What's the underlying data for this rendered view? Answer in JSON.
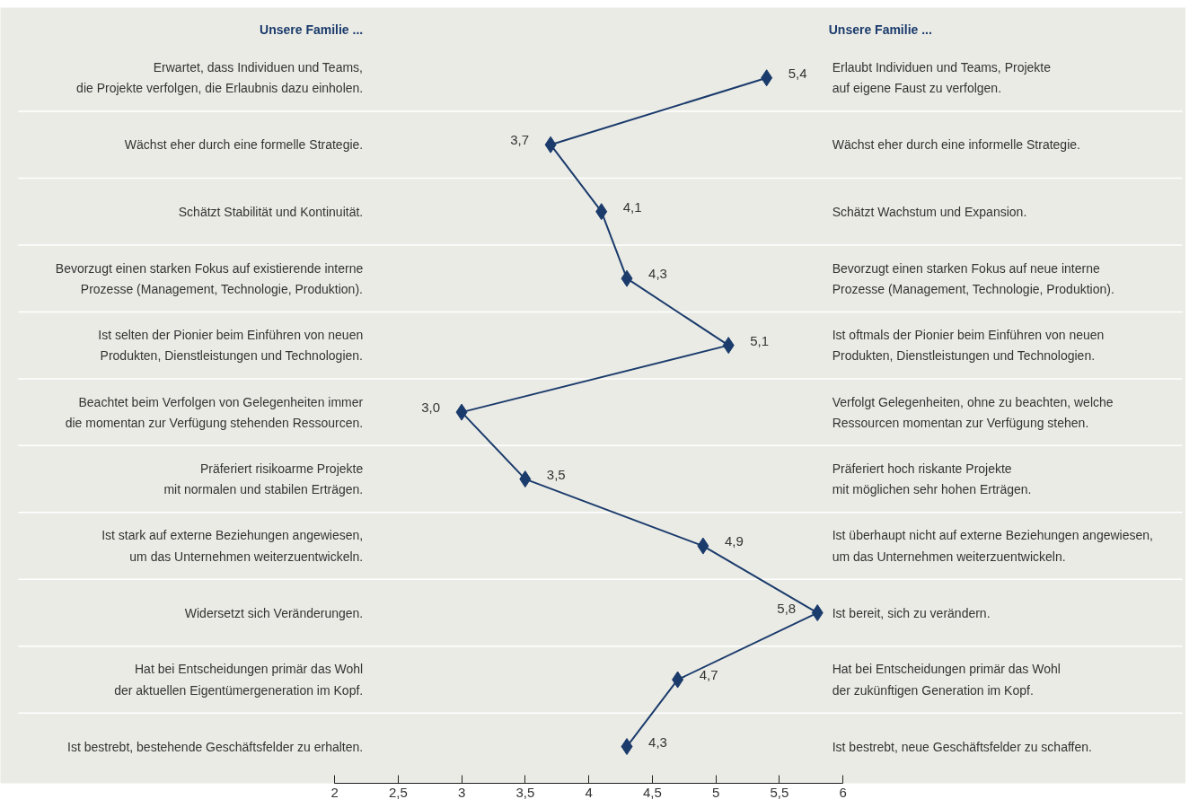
{
  "chart_data": {
    "type": "line",
    "orientation": "horizontal",
    "ylabel": "Unsere Familie ...",
    "y2label": "Unsere Familie ...",
    "categories": [
      "Erwartet, dass Individuen und Teams,\ndie Projekte verfolgen, die Erlaubnis dazu einholen.",
      "Wächst eher durch eine formelle Strategie.",
      "Schätzt Stabilität und Kontinuität.",
      "Bevorzugt einen starken Fokus auf existierende interne\nProzesse (Management, Technologie, Produktion).",
      "Ist selten der Pionier beim Einführen von neuen\nProdukten, Dienstleistungen und Technologien.",
      "Beachtet beim Verfolgen von Gelegenheiten immer\ndie momentan zur Verfügung stehenden Ressourcen.",
      "Präferiert risikoarme Projekte\nmit normalen und stabilen Erträgen.",
      "Ist stark auf externe Beziehungen angewiesen,\num das Unternehmen weiterzuentwickeln.",
      "Widersetzt sich Veränderungen.",
      "Hat bei Entscheidungen primär das Wohl\nder aktuellen Eigentümergeneration im Kopf.",
      "Ist bestrebt, bestehende Geschäftsfelder zu erhalten."
    ],
    "y2_categories": [
      "Erlaubt Individuen und Teams, Projekte\nauf eigene Faust zu verfolgen.",
      "Wächst eher durch eine informelle Strategie.",
      "Schätzt Wachstum und Expansion.",
      "Bevorzugt einen starken Fokus auf neue interne\nProzesse (Management, Technologie, Produktion).",
      "Ist oftmals der Pionier beim Einführen von neuen\nProdukten, Dienstleistungen und Technologien.",
      "Verfolgt Gelegenheiten, ohne zu beachten, welche\nRessourcen momentan zur Verfügung stehen.",
      "Präferiert hoch riskante Projekte\nmit möglichen sehr hohen Erträgen.",
      "Ist überhaupt nicht auf externe Beziehungen angewiesen,\num das Unternehmen weiterzuentwickeln.",
      "Ist bereit, sich zu verändern.",
      "Hat bei Entscheidungen primär das Wohl\nder zukünftigen Generation im Kopf.",
      "Ist bestrebt, neue Geschäftsfelder zu schaffen."
    ],
    "values": [
      5.4,
      3.7,
      4.1,
      4.3,
      5.1,
      3.0,
      3.5,
      4.9,
      5.8,
      4.7,
      4.3
    ],
    "value_labels": [
      "5,4",
      "3,7",
      "4,1",
      "4,3",
      "5,1",
      "3,0",
      "3,5",
      "4,9",
      "5,8",
      "4,7",
      "4,3"
    ],
    "color": "#1a3b6b",
    "marker": "diamond",
    "line_style": "solid",
    "xlim": [
      2,
      6
    ],
    "xticks": [
      2,
      {
        "value": 2.5,
        "label": "2,5"
      },
      3,
      {
        "value": 3.5,
        "label": "3,5"
      },
      4,
      {
        "value": 4.5,
        "label": "4,5"
      },
      5,
      {
        "value": 5.5,
        "label": "5,5"
      },
      6
    ],
    "grid": false
  }
}
